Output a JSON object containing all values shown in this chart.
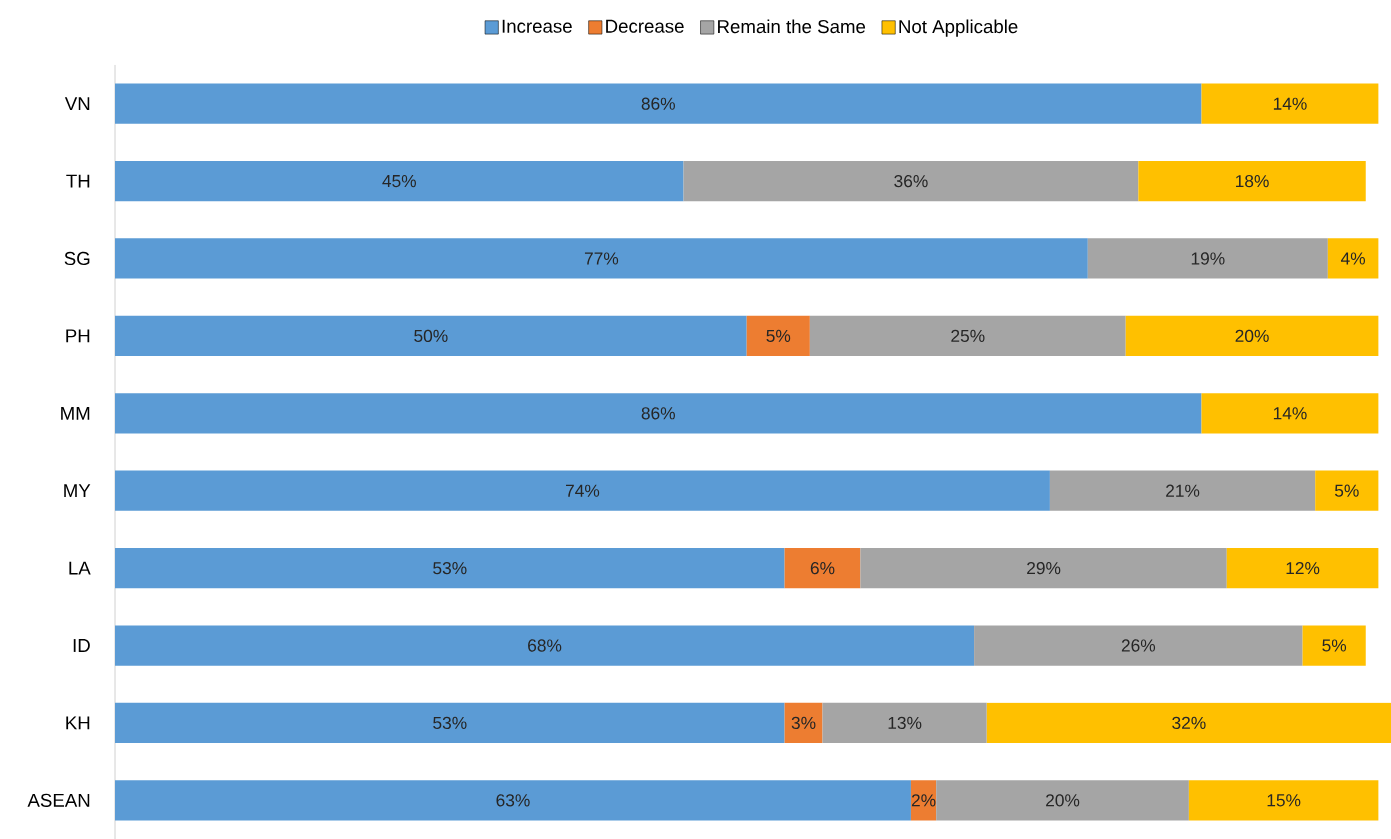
{
  "chart_data": {
    "type": "bar",
    "orientation": "horizontal",
    "stacked": true,
    "legend": "top",
    "categories": [
      "VN",
      "TH",
      "SG",
      "PH",
      "MM",
      "MY",
      "LA",
      "ID",
      "KH",
      "ASEAN"
    ],
    "series": [
      {
        "name": "Increase",
        "color": "#5b9bd5",
        "values": [
          86,
          45,
          77,
          50,
          86,
          74,
          53,
          68,
          53,
          63
        ],
        "value_labels": [
          "86%",
          "45%",
          "77%",
          "50%",
          "86%",
          "74%",
          "53%",
          "68%",
          "53%",
          "63%"
        ]
      },
      {
        "name": "Decrease",
        "color": "#ed7d31",
        "values": [
          null,
          null,
          null,
          5,
          null,
          null,
          6,
          null,
          3,
          2
        ],
        "value_labels": [
          null,
          null,
          null,
          "5%",
          null,
          null,
          "6%",
          null,
          "3%",
          "2%"
        ]
      },
      {
        "name": "Remain the Same",
        "color": "#a5a5a5",
        "values": [
          null,
          36,
          19,
          25,
          null,
          21,
          29,
          26,
          13,
          20
        ],
        "value_labels": [
          null,
          "36%",
          "19%",
          "25%",
          null,
          "21%",
          "29%",
          "26%",
          "13%",
          "20%"
        ]
      },
      {
        "name": "Not Applicable",
        "color": "#ffc000",
        "values": [
          14,
          18,
          4,
          20,
          14,
          5,
          12,
          5,
          32,
          15
        ],
        "value_labels": [
          "14%",
          "18%",
          "4%",
          "20%",
          "14%",
          "5%",
          "12%",
          "5%",
          "32%",
          "15%"
        ]
      }
    ]
  }
}
